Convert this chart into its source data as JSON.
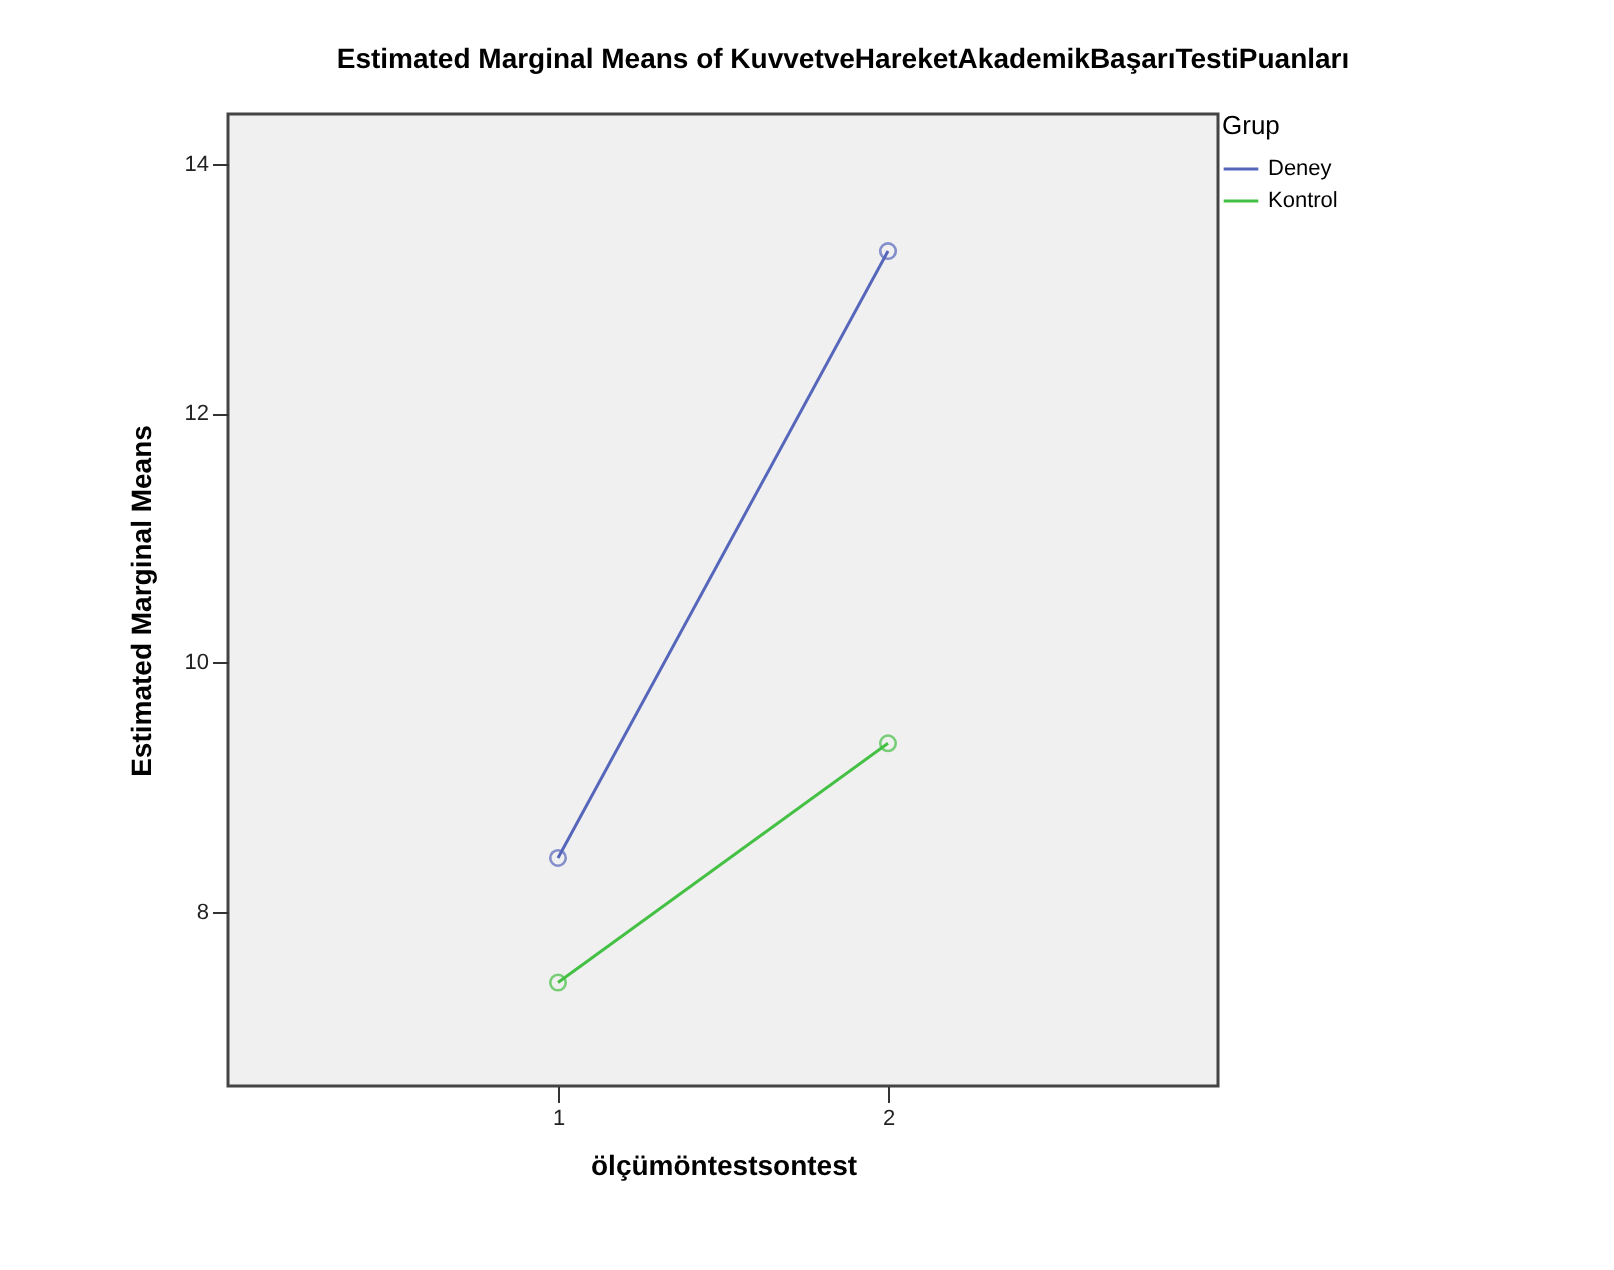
{
  "chart_data": {
    "type": "line",
    "title": "Estimated Marginal Means of KuvvetveHareketAkademikBaşarıTestiPuanları",
    "xlabel": "ölçümöntestsontest",
    "ylabel": "Estimated Marginal Means",
    "legend_title": "Grup",
    "categories": [
      "1",
      "2"
    ],
    "series": [
      {
        "name": "Deney",
        "color": "#5566bb",
        "values": [
          8.43,
          13.3
        ]
      },
      {
        "name": "Kontrol",
        "color": "#44c044",
        "values": [
          7.43,
          9.35
        ]
      }
    ],
    "ylim": [
      6.6,
      14.4
    ],
    "yticks": [
      8,
      10,
      12,
      14
    ],
    "grid": false,
    "legend": "top right",
    "marker": "circle",
    "line_style": "solid"
  }
}
